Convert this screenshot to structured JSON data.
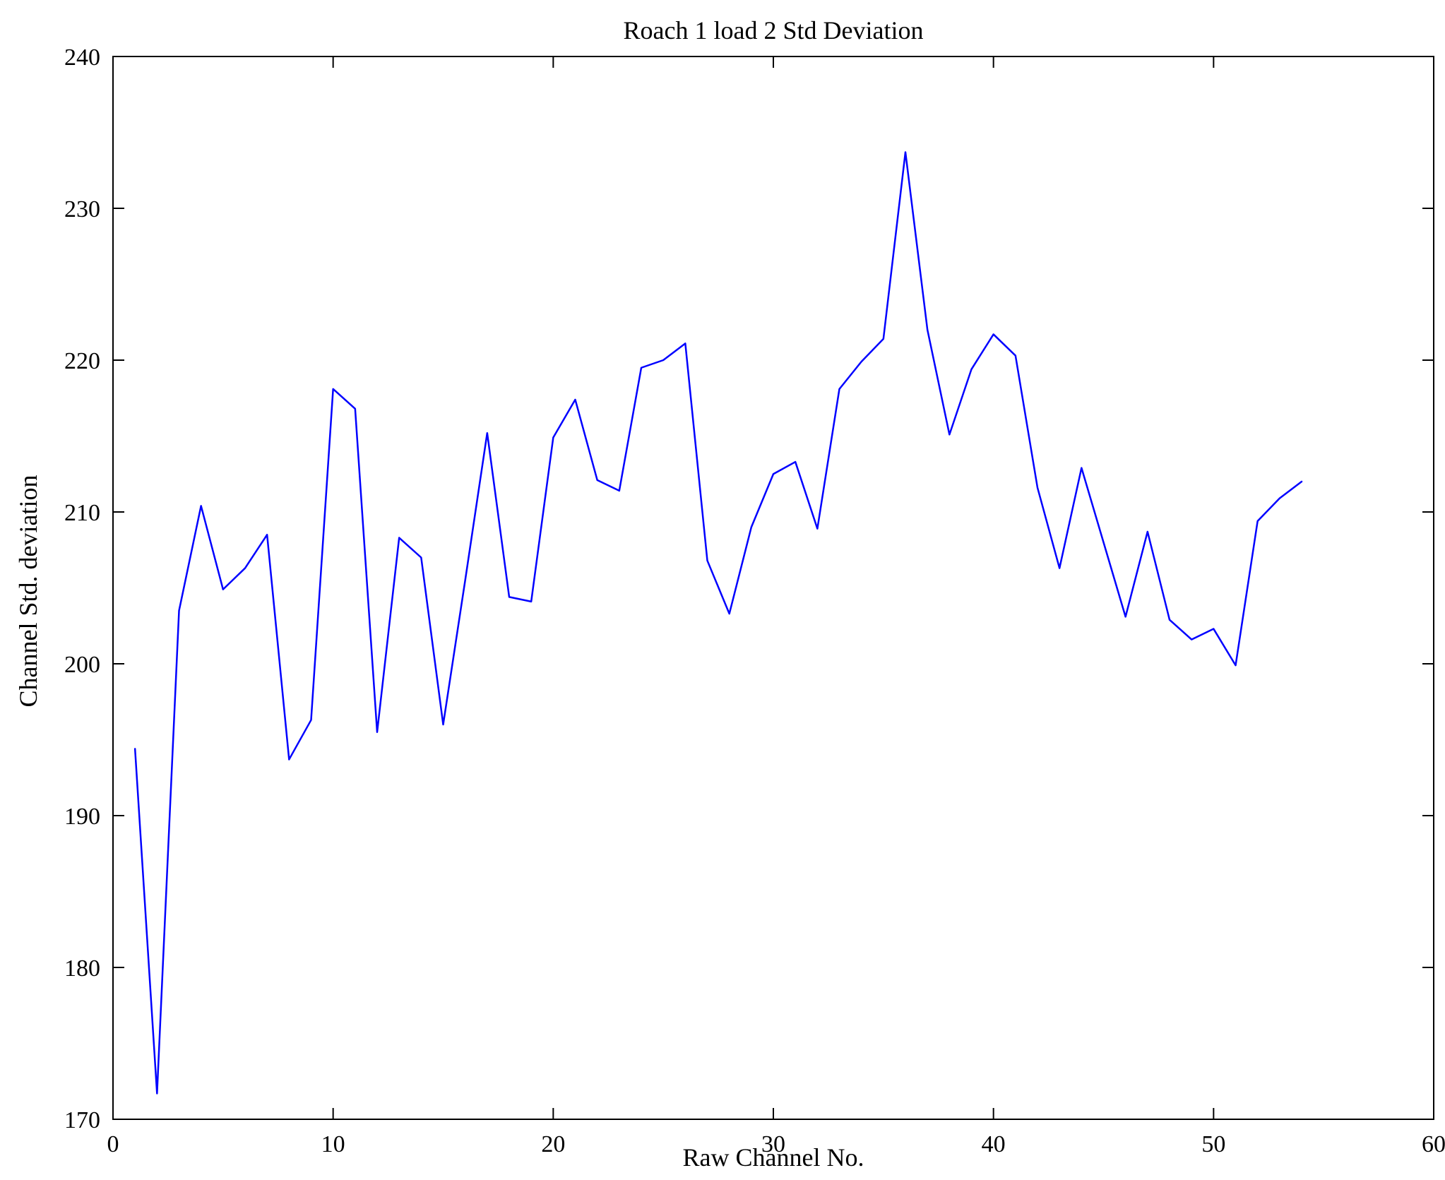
{
  "figure": {
    "background": "#ffffff"
  },
  "chart_data": {
    "type": "line",
    "title": "Roach 1 load 2 Std Deviation",
    "xlabel": "Raw Channel No.",
    "ylabel": "Channel Std. deviation",
    "xlim": [
      0,
      60
    ],
    "ylim": [
      170,
      240
    ],
    "xticks": [
      0,
      10,
      20,
      30,
      40,
      50,
      60
    ],
    "yticks": [
      170,
      180,
      190,
      200,
      210,
      220,
      230,
      240
    ],
    "grid": false,
    "legend_position": "none",
    "line_color": "#0000ff",
    "axis_color": "#000000",
    "series": [
      {
        "name": "Channel Std. deviation",
        "x": [
          1,
          2,
          3,
          4,
          5,
          6,
          7,
          8,
          9,
          10,
          11,
          12,
          13,
          14,
          15,
          16,
          17,
          18,
          19,
          20,
          21,
          22,
          23,
          24,
          25,
          26,
          27,
          28,
          29,
          30,
          31,
          32,
          33,
          34,
          35,
          36,
          37,
          38,
          39,
          40,
          41,
          42,
          43,
          44,
          45,
          46,
          47,
          48,
          49,
          50,
          51,
          52,
          53,
          54
        ],
        "y": [
          194.4,
          171.7,
          203.5,
          210.4,
          204.9,
          206.3,
          208.5,
          193.7,
          196.3,
          218.1,
          216.8,
          195.5,
          208.3,
          207.0,
          196.0,
          205.5,
          215.2,
          204.4,
          204.1,
          214.9,
          217.4,
          212.1,
          211.4,
          219.5,
          220.0,
          221.1,
          206.8,
          203.3,
          209.0,
          212.5,
          213.3,
          208.9,
          218.1,
          219.9,
          221.4,
          233.7,
          222.0,
          215.1,
          219.4,
          221.7,
          220.3,
          211.6,
          206.3,
          212.9,
          208.0,
          203.1,
          208.7,
          202.9,
          201.6,
          202.3,
          199.9,
          209.4,
          210.9,
          212.0
        ]
      }
    ]
  }
}
